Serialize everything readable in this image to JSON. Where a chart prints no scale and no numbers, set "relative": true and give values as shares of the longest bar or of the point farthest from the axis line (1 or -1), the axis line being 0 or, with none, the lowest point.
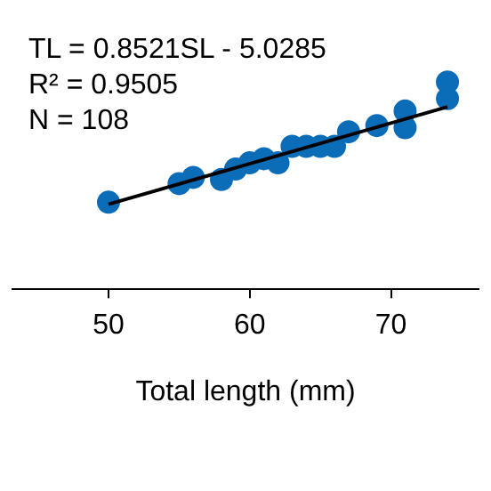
{
  "chart_data": {
    "type": "scatter",
    "xlabel": "Total length (mm)",
    "annotations": [
      "TL = 0.8521SL - 5.0285",
      "R² = 0.9505",
      "N = 108"
    ],
    "relative": true,
    "xlim": [
      43.2,
      76.2
    ],
    "xticks": [
      50,
      60,
      70
    ],
    "tick_labels": "x",
    "grid": false,
    "legend": false,
    "marker": "circle",
    "series": [
      {
        "color": "#0b6cb8",
        "x": [
          50,
          55,
          56,
          58,
          59,
          60,
          61,
          62,
          63,
          64,
          65,
          66,
          67,
          69,
          71,
          71,
          74,
          74
        ],
        "values": [
          0.42,
          0.51,
          0.54,
          0.53,
          0.58,
          0.61,
          0.63,
          0.61,
          0.69,
          0.69,
          0.69,
          0.69,
          0.76,
          0.79,
          0.86,
          0.78,
          1,
          0.92
        ]
      },
      {
        "type": "line",
        "color": "#000000",
        "x": [
          50,
          74
        ],
        "values": [
          0.41,
          0.88
        ],
        "marker": "none",
        "line_style": "solid"
      }
    ]
  }
}
